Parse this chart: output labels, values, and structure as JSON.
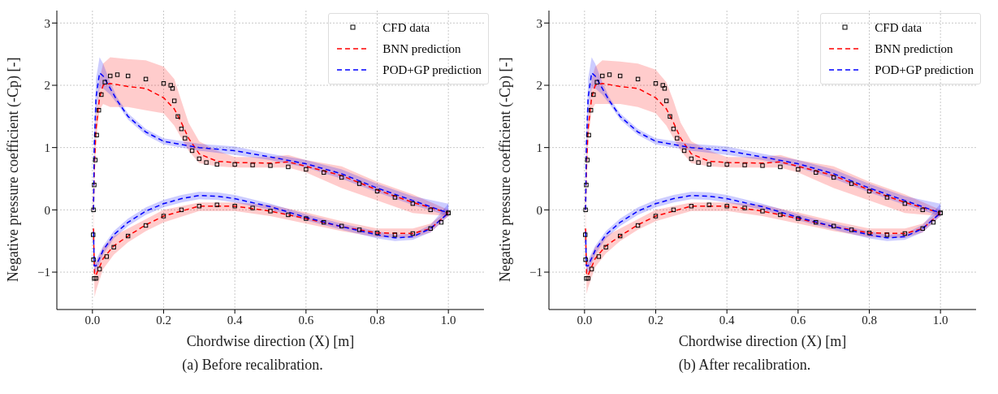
{
  "chart_data": [
    {
      "type": "line",
      "title": "(a) Before recalibration.",
      "xlabel": "Chordwise direction (X) [m]",
      "ylabel": "Negative pressure coefficient (-Cp) [-]",
      "xlim": [
        -0.1,
        1.1
      ],
      "ylim": [
        -1.6,
        3.2
      ],
      "xticks": [
        {
          "value": 0,
          "label": "0.0"
        },
        {
          "value": 0.2,
          "label": "0.2"
        },
        {
          "value": 0.4,
          "label": "0.4"
        },
        {
          "value": 0.6,
          "label": "0.6"
        },
        {
          "value": 0.8,
          "label": "0.8"
        },
        {
          "value": 1,
          "label": "1.0"
        }
      ],
      "yticks": [
        {
          "value": -1,
          "label": "−1"
        },
        0,
        1,
        2,
        3
      ],
      "grid": true,
      "legend": "top right",
      "series": [
        {
          "name": "CFD data",
          "type": "scatter",
          "marker": "square",
          "color": "#000000",
          "x": [
            1.0,
            0.95,
            0.9,
            0.85,
            0.8,
            0.75,
            0.7,
            0.65,
            0.6,
            0.55,
            0.5,
            0.45,
            0.4,
            0.35,
            0.32,
            0.3,
            0.28,
            0.26,
            0.25,
            0.24,
            0.23,
            0.225,
            0.22,
            0.2,
            0.15,
            0.1,
            0.07,
            0.05,
            0.035,
            0.025,
            0.018,
            0.012,
            0.008,
            0.005,
            0.003,
            0.002,
            0.003,
            0.005,
            0.01,
            0.02,
            0.04,
            0.06,
            0.1,
            0.15,
            0.2,
            0.25,
            0.3,
            0.35,
            0.4,
            0.45,
            0.5,
            0.55,
            0.6,
            0.65,
            0.7,
            0.75,
            0.8,
            0.85,
            0.9,
            0.95,
            0.98,
            1.0
          ],
          "values": [
            -0.05,
            0.0,
            0.1,
            0.2,
            0.3,
            0.42,
            0.52,
            0.6,
            0.65,
            0.69,
            0.71,
            0.72,
            0.73,
            0.73,
            0.76,
            0.82,
            0.95,
            1.15,
            1.3,
            1.5,
            1.75,
            1.95,
            2.0,
            2.03,
            2.1,
            2.15,
            2.17,
            2.15,
            2.05,
            1.85,
            1.6,
            1.2,
            0.8,
            0.4,
            0.0,
            -0.4,
            -0.8,
            -1.1,
            -1.1,
            -0.95,
            -0.75,
            -0.6,
            -0.42,
            -0.25,
            -0.1,
            0.0,
            0.06,
            0.08,
            0.06,
            0.03,
            -0.02,
            -0.08,
            -0.14,
            -0.2,
            -0.26,
            -0.32,
            -0.37,
            -0.4,
            -0.38,
            -0.3,
            -0.2,
            -0.05
          ]
        },
        {
          "name": "BNN prediction",
          "line_style": "dashed",
          "color": "#ff0000",
          "x": [
            0.003,
            0.005,
            0.01,
            0.02,
            0.03,
            0.05,
            0.1,
            0.15,
            0.2,
            0.23,
            0.25,
            0.27,
            0.3,
            0.35,
            0.4,
            0.5,
            0.55,
            0.6,
            0.7,
            0.8,
            0.9,
            1.0
          ],
          "values": [
            0.0,
            0.6,
            1.3,
            1.8,
            2.0,
            2.03,
            1.98,
            1.95,
            1.8,
            1.62,
            1.4,
            1.15,
            0.9,
            0.78,
            0.76,
            0.75,
            0.77,
            0.7,
            0.55,
            0.32,
            0.12,
            -0.05
          ],
          "lower": [
            -0.2,
            0.4,
            1.1,
            1.6,
            1.7,
            1.65,
            1.65,
            1.6,
            1.55,
            1.35,
            1.15,
            0.95,
            0.75,
            0.7,
            0.68,
            0.68,
            0.68,
            0.6,
            0.35,
            0.15,
            -0.05,
            -0.1
          ],
          "upper": [
            0.2,
            0.8,
            1.5,
            2.1,
            2.35,
            2.45,
            2.42,
            2.4,
            2.3,
            2.1,
            1.75,
            1.4,
            1.1,
            0.95,
            0.85,
            0.85,
            0.88,
            0.8,
            0.7,
            0.45,
            0.25,
            0.0
          ]
        },
        {
          "line_style": "dashed",
          "color": "#ff0000",
          "x": [
            0.003,
            0.004,
            0.006,
            0.01,
            0.03,
            0.06,
            0.1,
            0.15,
            0.2,
            0.3,
            0.4,
            0.5,
            0.6,
            0.7,
            0.8,
            0.9,
            0.95,
            1.0
          ],
          "values": [
            -0.3,
            -0.6,
            -1.05,
            -1.05,
            -0.78,
            -0.58,
            -0.42,
            -0.24,
            -0.1,
            0.06,
            0.06,
            -0.02,
            -0.14,
            -0.27,
            -0.37,
            -0.38,
            -0.3,
            -0.05
          ],
          "lower": [
            -0.5,
            -0.8,
            -1.4,
            -1.3,
            -0.95,
            -0.72,
            -0.52,
            -0.34,
            -0.2,
            -0.02,
            -0.02,
            -0.1,
            -0.22,
            -0.34,
            -0.44,
            -0.45,
            -0.36,
            -0.1
          ],
          "upper": [
            0.2,
            -0.4,
            -0.85,
            -0.85,
            -0.6,
            -0.42,
            -0.3,
            -0.15,
            0.0,
            0.12,
            0.12,
            0.08,
            -0.04,
            -0.18,
            -0.3,
            -0.3,
            -0.22,
            0.0
          ]
        },
        {
          "name": "POD+GP prediction",
          "line_style": "dashed",
          "color": "#0000ff",
          "x": [
            0.003,
            0.005,
            0.01,
            0.02,
            0.03,
            0.05,
            0.07,
            0.1,
            0.15,
            0.2,
            0.3,
            0.4,
            0.5,
            0.6,
            0.7,
            0.8,
            0.9,
            1.0
          ],
          "values": [
            0.0,
            1.0,
            1.8,
            2.2,
            2.15,
            1.95,
            1.75,
            1.5,
            1.25,
            1.1,
            1.0,
            0.95,
            0.85,
            0.74,
            0.58,
            0.35,
            0.15,
            -0.05
          ],
          "lower": [
            -0.1,
            0.8,
            1.5,
            1.95,
            1.95,
            1.85,
            1.7,
            1.45,
            1.2,
            1.05,
            0.95,
            0.88,
            0.8,
            0.68,
            0.5,
            0.28,
            0.08,
            -0.1
          ],
          "upper": [
            0.1,
            1.2,
            2.1,
            2.45,
            2.35,
            2.05,
            1.8,
            1.55,
            1.3,
            1.15,
            1.06,
            1.02,
            0.9,
            0.8,
            0.65,
            0.42,
            0.22,
            0.1
          ]
        },
        {
          "line_style": "dashed",
          "color": "#0000ff",
          "x": [
            0.003,
            0.005,
            0.01,
            0.03,
            0.06,
            0.1,
            0.15,
            0.2,
            0.25,
            0.3,
            0.35,
            0.4,
            0.5,
            0.6,
            0.7,
            0.8,
            0.85,
            0.9,
            0.95,
            1.0
          ],
          "values": [
            -0.35,
            -0.9,
            -0.9,
            -0.65,
            -0.4,
            -0.2,
            -0.02,
            0.1,
            0.18,
            0.23,
            0.22,
            0.18,
            0.05,
            -0.12,
            -0.27,
            -0.4,
            -0.45,
            -0.43,
            -0.3,
            -0.05
          ],
          "lower": [
            -0.45,
            -1.0,
            -1.0,
            -0.72,
            -0.46,
            -0.26,
            -0.08,
            0.04,
            0.12,
            0.17,
            0.16,
            0.12,
            0.0,
            -0.17,
            -0.32,
            -0.46,
            -0.5,
            -0.48,
            -0.36,
            -0.1
          ],
          "upper": [
            -0.25,
            -0.8,
            -0.8,
            -0.58,
            -0.34,
            -0.14,
            0.04,
            0.16,
            0.24,
            0.29,
            0.28,
            0.24,
            0.1,
            -0.07,
            -0.22,
            -0.34,
            -0.4,
            -0.38,
            -0.24,
            0.1
          ]
        }
      ]
    },
    {
      "type": "line",
      "title": "(b) After recalibration.",
      "xlabel": "Chordwise direction (X) [m]",
      "ylabel": "Negative pressure coefficient (-Cp) [-]",
      "xlim": [
        -0.1,
        1.1
      ],
      "ylim": [
        -1.6,
        3.2
      ],
      "xticks": [
        {
          "value": 0,
          "label": "0.0"
        },
        {
          "value": 0.2,
          "label": "0.2"
        },
        {
          "value": 0.4,
          "label": "0.4"
        },
        {
          "value": 0.6,
          "label": "0.6"
        },
        {
          "value": 0.8,
          "label": "0.8"
        },
        {
          "value": 1,
          "label": "1.0"
        }
      ],
      "yticks": [
        {
          "value": -1,
          "label": "−1"
        },
        0,
        1,
        2,
        3
      ],
      "grid": true,
      "legend": "top right",
      "series": [
        {
          "name": "CFD data",
          "type": "scatter",
          "marker": "square",
          "color": "#000000",
          "x": [
            1.0,
            0.95,
            0.9,
            0.85,
            0.8,
            0.75,
            0.7,
            0.65,
            0.6,
            0.55,
            0.5,
            0.45,
            0.4,
            0.35,
            0.32,
            0.3,
            0.28,
            0.26,
            0.25,
            0.24,
            0.23,
            0.225,
            0.22,
            0.2,
            0.15,
            0.1,
            0.07,
            0.05,
            0.035,
            0.025,
            0.018,
            0.012,
            0.008,
            0.005,
            0.003,
            0.002,
            0.003,
            0.005,
            0.01,
            0.02,
            0.04,
            0.06,
            0.1,
            0.15,
            0.2,
            0.25,
            0.3,
            0.35,
            0.4,
            0.45,
            0.5,
            0.55,
            0.6,
            0.65,
            0.7,
            0.75,
            0.8,
            0.85,
            0.9,
            0.95,
            0.98,
            1.0
          ],
          "values": [
            -0.05,
            0.0,
            0.1,
            0.2,
            0.3,
            0.42,
            0.52,
            0.6,
            0.65,
            0.69,
            0.71,
            0.72,
            0.73,
            0.73,
            0.76,
            0.82,
            0.95,
            1.15,
            1.3,
            1.5,
            1.75,
            1.95,
            2.0,
            2.03,
            2.1,
            2.15,
            2.17,
            2.15,
            2.05,
            1.85,
            1.6,
            1.2,
            0.8,
            0.4,
            0.0,
            -0.4,
            -0.8,
            -1.1,
            -1.1,
            -0.95,
            -0.75,
            -0.6,
            -0.42,
            -0.25,
            -0.1,
            0.0,
            0.06,
            0.08,
            0.06,
            0.03,
            -0.02,
            -0.08,
            -0.14,
            -0.2,
            -0.26,
            -0.32,
            -0.37,
            -0.4,
            -0.38,
            -0.3,
            -0.2,
            -0.05
          ]
        },
        {
          "name": "BNN prediction",
          "line_style": "dashed",
          "color": "#ff0000",
          "x": [
            0.003,
            0.005,
            0.01,
            0.02,
            0.03,
            0.05,
            0.1,
            0.15,
            0.2,
            0.23,
            0.25,
            0.27,
            0.3,
            0.35,
            0.4,
            0.5,
            0.55,
            0.6,
            0.7,
            0.8,
            0.9,
            1.0
          ],
          "values": [
            0.0,
            0.6,
            1.3,
            1.8,
            2.0,
            2.03,
            1.98,
            1.95,
            1.8,
            1.62,
            1.4,
            1.15,
            0.9,
            0.78,
            0.76,
            0.75,
            0.77,
            0.7,
            0.55,
            0.32,
            0.12,
            -0.05
          ],
          "lower": [
            -0.2,
            0.4,
            1.1,
            1.6,
            1.7,
            1.7,
            1.7,
            1.65,
            1.55,
            1.35,
            1.15,
            0.95,
            0.75,
            0.7,
            0.68,
            0.68,
            0.68,
            0.6,
            0.35,
            0.15,
            -0.05,
            -0.1
          ],
          "upper": [
            0.2,
            0.8,
            1.5,
            2.1,
            2.3,
            2.4,
            2.38,
            2.35,
            2.25,
            2.05,
            1.75,
            1.4,
            1.1,
            0.95,
            0.85,
            0.85,
            0.88,
            0.8,
            0.7,
            0.45,
            0.25,
            0.0
          ]
        },
        {
          "line_style": "dashed",
          "color": "#ff0000",
          "x": [
            0.003,
            0.004,
            0.006,
            0.01,
            0.03,
            0.06,
            0.1,
            0.15,
            0.2,
            0.3,
            0.4,
            0.5,
            0.6,
            0.7,
            0.8,
            0.9,
            0.95,
            1.0
          ],
          "values": [
            -0.3,
            -0.6,
            -1.05,
            -1.05,
            -0.78,
            -0.58,
            -0.42,
            -0.24,
            -0.1,
            0.06,
            0.06,
            -0.02,
            -0.14,
            -0.27,
            -0.37,
            -0.38,
            -0.3,
            -0.05
          ],
          "lower": [
            -0.5,
            -0.8,
            -1.35,
            -1.25,
            -0.92,
            -0.7,
            -0.5,
            -0.32,
            -0.18,
            -0.02,
            -0.02,
            -0.1,
            -0.22,
            -0.34,
            -0.44,
            -0.45,
            -0.36,
            -0.1
          ],
          "upper": [
            0.2,
            -0.4,
            -0.85,
            -0.85,
            -0.6,
            -0.42,
            -0.3,
            -0.15,
            0.0,
            0.12,
            0.12,
            0.08,
            -0.04,
            -0.18,
            -0.3,
            -0.3,
            -0.22,
            0.0
          ]
        },
        {
          "name": "POD+GP prediction",
          "line_style": "dashed",
          "color": "#0000ff",
          "x": [
            0.003,
            0.005,
            0.01,
            0.02,
            0.03,
            0.05,
            0.07,
            0.1,
            0.15,
            0.2,
            0.3,
            0.4,
            0.5,
            0.6,
            0.7,
            0.8,
            0.9,
            1.0
          ],
          "values": [
            0.0,
            1.0,
            1.8,
            2.2,
            2.15,
            1.95,
            1.75,
            1.5,
            1.25,
            1.1,
            1.0,
            0.95,
            0.85,
            0.74,
            0.58,
            0.35,
            0.15,
            -0.05
          ],
          "lower": [
            -0.1,
            0.8,
            1.5,
            1.95,
            1.95,
            1.85,
            1.7,
            1.45,
            1.2,
            1.05,
            0.95,
            0.88,
            0.8,
            0.68,
            0.5,
            0.28,
            0.08,
            -0.1
          ],
          "upper": [
            0.1,
            1.2,
            2.1,
            2.45,
            2.35,
            2.05,
            1.8,
            1.55,
            1.3,
            1.15,
            1.06,
            1.02,
            0.9,
            0.8,
            0.65,
            0.42,
            0.22,
            0.1
          ]
        },
        {
          "line_style": "dashed",
          "color": "#0000ff",
          "x": [
            0.003,
            0.005,
            0.01,
            0.03,
            0.06,
            0.1,
            0.15,
            0.2,
            0.25,
            0.3,
            0.35,
            0.4,
            0.5,
            0.6,
            0.7,
            0.8,
            0.85,
            0.9,
            0.95,
            1.0
          ],
          "values": [
            -0.35,
            -0.9,
            -0.9,
            -0.65,
            -0.4,
            -0.2,
            -0.02,
            0.1,
            0.18,
            0.23,
            0.22,
            0.18,
            0.05,
            -0.12,
            -0.27,
            -0.4,
            -0.45,
            -0.43,
            -0.3,
            -0.05
          ],
          "lower": [
            -0.45,
            -1.0,
            -1.0,
            -0.72,
            -0.46,
            -0.26,
            -0.08,
            0.04,
            0.12,
            0.17,
            0.16,
            0.12,
            0.0,
            -0.17,
            -0.32,
            -0.46,
            -0.5,
            -0.48,
            -0.36,
            -0.1
          ],
          "upper": [
            -0.25,
            -0.8,
            -0.8,
            -0.58,
            -0.34,
            -0.14,
            0.04,
            0.16,
            0.24,
            0.29,
            0.28,
            0.24,
            0.1,
            -0.07,
            -0.22,
            -0.34,
            -0.4,
            -0.38,
            -0.24,
            0.1
          ]
        }
      ]
    }
  ]
}
